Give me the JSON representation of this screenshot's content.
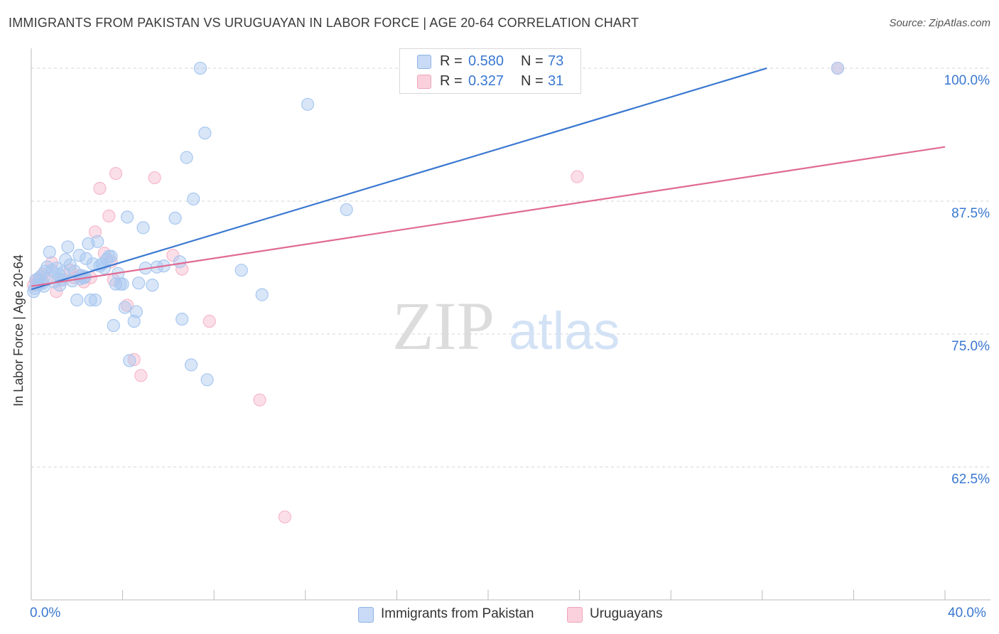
{
  "header": {
    "title": "IMMIGRANTS FROM PAKISTAN VS URUGUAYAN IN LABOR FORCE | AGE 20-64 CORRELATION CHART",
    "source": "Source: ZipAtlas.com"
  },
  "watermark": {
    "zip": "ZIP",
    "atlas": "atlas"
  },
  "legend_top": [
    {
      "r_label": "R =",
      "r_value": "0.580",
      "n_label": "N =",
      "n_value": "73",
      "color": "#a9c8f0"
    },
    {
      "r_label": "R =",
      "r_value": "0.327",
      "n_label": "N =",
      "n_value": "31",
      "color": "#f6b8cb"
    }
  ],
  "legend_bottom": [
    {
      "label": "Immigrants from Pakistan",
      "color": "#a9c8f0"
    },
    {
      "label": "Uruguayans",
      "color": "#f6b8cb"
    }
  ],
  "axis": {
    "ylabel": "In Labor Force | Age 20-64",
    "x_min_label": "0.0%",
    "x_max_label": "40.0%",
    "y_tick_labels": [
      "100.0%",
      "87.5%",
      "75.0%",
      "62.5%"
    ]
  },
  "chart_data": {
    "type": "scatter",
    "title": "IMMIGRANTS FROM PAKISTAN VS URUGUAYAN IN LABOR FORCE | AGE 20-64 CORRELATION CHART",
    "xlabel": "",
    "ylabel": "In Labor Force | Age 20-64",
    "xlim": [
      0,
      40
    ],
    "ylim": [
      50,
      101.2
    ],
    "y_ticks": [
      62.5,
      75.0,
      87.5,
      100.0
    ],
    "grid": true,
    "series": [
      {
        "name": "Immigrants from Pakistan",
        "color": "#3a78d0",
        "fill": "#a9c8f0",
        "trend": {
          "x": [
            0,
            32.2
          ],
          "y": [
            79.2,
            100.0
          ]
        },
        "points": [
          [
            0.1,
            79.0
          ],
          [
            0.2,
            80.1
          ],
          [
            0.3,
            79.6
          ],
          [
            0.4,
            80.4
          ],
          [
            0.5,
            79.8
          ],
          [
            0.6,
            80.9
          ],
          [
            0.7,
            81.3
          ],
          [
            0.8,
            82.7
          ],
          [
            0.9,
            81.0
          ],
          [
            1.0,
            79.9
          ],
          [
            1.1,
            81.2
          ],
          [
            1.2,
            80.6
          ],
          [
            1.3,
            80.1
          ],
          [
            1.4,
            80.8
          ],
          [
            1.5,
            82.0
          ],
          [
            1.6,
            83.2
          ],
          [
            1.7,
            81.5
          ],
          [
            1.8,
            80.0
          ],
          [
            1.9,
            80.9
          ],
          [
            2.0,
            78.2
          ],
          [
            2.1,
            82.4
          ],
          [
            2.2,
            80.5
          ],
          [
            2.3,
            80.3
          ],
          [
            2.4,
            82.1
          ],
          [
            2.5,
            83.5
          ],
          [
            2.6,
            78.2
          ],
          [
            2.7,
            81.6
          ],
          [
            2.8,
            78.2
          ],
          [
            2.9,
            83.7
          ],
          [
            3.0,
            81.4
          ],
          [
            3.1,
            81.6
          ],
          [
            3.2,
            81.2
          ],
          [
            3.3,
            82.0
          ],
          [
            3.4,
            82.3
          ],
          [
            3.5,
            82.3
          ],
          [
            3.6,
            75.8
          ],
          [
            3.7,
            79.7
          ],
          [
            3.8,
            80.7
          ],
          [
            3.9,
            79.7
          ],
          [
            4.0,
            79.7
          ],
          [
            4.1,
            77.5
          ],
          [
            4.2,
            86.0
          ],
          [
            4.3,
            72.5
          ],
          [
            4.5,
            76.2
          ],
          [
            4.6,
            77.1
          ],
          [
            4.7,
            79.8
          ],
          [
            4.9,
            85.0
          ],
          [
            5.0,
            81.2
          ],
          [
            5.3,
            79.6
          ],
          [
            5.5,
            81.3
          ],
          [
            5.8,
            81.4
          ],
          [
            6.3,
            85.9
          ],
          [
            6.5,
            81.8
          ],
          [
            6.6,
            76.4
          ],
          [
            6.8,
            91.6
          ],
          [
            7.0,
            72.1
          ],
          [
            7.1,
            87.7
          ],
          [
            7.4,
            100.0
          ],
          [
            7.6,
            93.9
          ],
          [
            7.7,
            70.7
          ],
          [
            9.2,
            81.0
          ],
          [
            10.1,
            78.7
          ],
          [
            12.1,
            96.6
          ],
          [
            13.8,
            86.7
          ],
          [
            16.4,
            100.0
          ],
          [
            16.4,
            100.0
          ],
          [
            35.3,
            100.0
          ],
          [
            0.15,
            79.3
          ],
          [
            0.35,
            80.2
          ],
          [
            0.55,
            79.5
          ],
          [
            1.25,
            79.6
          ],
          [
            2.15,
            80.2
          ],
          [
            2.35,
            80.4
          ]
        ]
      },
      {
        "name": "Uruguayans",
        "color": "#e06a93",
        "fill": "#f6b8cb",
        "trend": {
          "x": [
            0,
            40
          ],
          "y": [
            79.5,
            92.6
          ]
        },
        "points": [
          [
            0.1,
            79.6
          ],
          [
            0.3,
            80.0
          ],
          [
            0.5,
            80.6
          ],
          [
            0.7,
            80.2
          ],
          [
            0.9,
            81.7
          ],
          [
            1.1,
            79.0
          ],
          [
            1.4,
            80.1
          ],
          [
            1.7,
            81.0
          ],
          [
            1.9,
            80.3
          ],
          [
            2.1,
            80.5
          ],
          [
            2.3,
            79.9
          ],
          [
            2.6,
            80.3
          ],
          [
            2.8,
            84.6
          ],
          [
            3.0,
            88.7
          ],
          [
            3.2,
            82.6
          ],
          [
            3.4,
            86.1
          ],
          [
            3.5,
            81.8
          ],
          [
            3.6,
            80.1
          ],
          [
            3.7,
            90.1
          ],
          [
            4.2,
            77.7
          ],
          [
            4.5,
            72.6
          ],
          [
            4.8,
            71.1
          ],
          [
            5.4,
            89.7
          ],
          [
            6.2,
            82.4
          ],
          [
            6.6,
            81.1
          ],
          [
            7.8,
            76.2
          ],
          [
            10.0,
            68.8
          ],
          [
            11.1,
            57.8
          ],
          [
            23.9,
            89.8
          ],
          [
            35.3,
            100.0
          ],
          [
            0.2,
            80.0
          ]
        ]
      }
    ]
  }
}
